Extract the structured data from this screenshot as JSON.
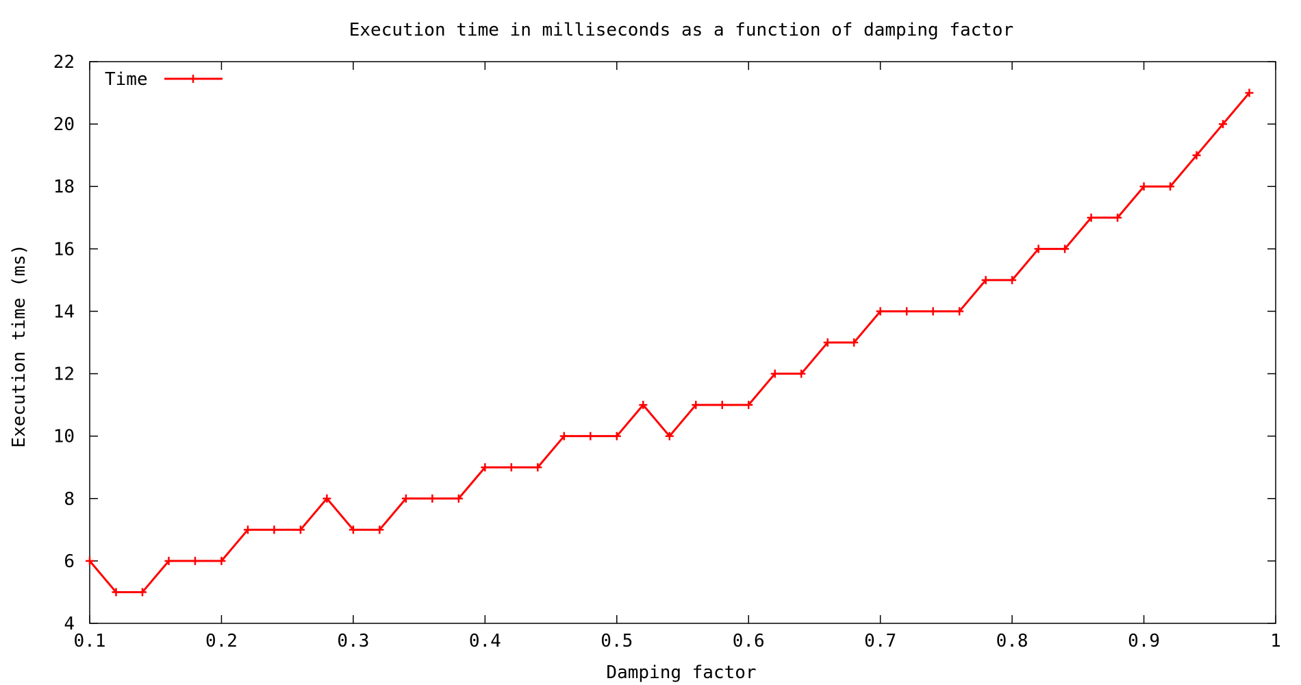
{
  "chart_data": {
    "type": "line",
    "title": "Execution time in milliseconds as a function of damping factor",
    "xlabel": "Damping factor",
    "ylabel": "Execution time (ms)",
    "xlim": [
      0.1,
      1.0
    ],
    "ylim": [
      4,
      22
    ],
    "xticks": [
      0.1,
      0.2,
      0.3,
      0.4,
      0.5,
      0.6,
      0.7,
      0.8,
      0.9,
      1.0
    ],
    "xtick_labels": [
      "0.1",
      "0.2",
      "0.3",
      "0.4",
      "0.5",
      "0.6",
      "0.7",
      "0.8",
      "0.9",
      "1"
    ],
    "yticks": [
      4,
      6,
      8,
      10,
      12,
      14,
      16,
      18,
      20,
      22
    ],
    "ytick_labels": [
      "4",
      "6",
      "8",
      "10",
      "12",
      "14",
      "16",
      "18",
      "20",
      "22"
    ],
    "grid": false,
    "legend_position": "top-left",
    "series": [
      {
        "name": "Time",
        "color": "#ff0000",
        "marker": "plus",
        "x": [
          0.1,
          0.12,
          0.14,
          0.16,
          0.18,
          0.2,
          0.22,
          0.24,
          0.26,
          0.28,
          0.3,
          0.32,
          0.34,
          0.36,
          0.38,
          0.4,
          0.42,
          0.44,
          0.46,
          0.48,
          0.5,
          0.52,
          0.54,
          0.56,
          0.58,
          0.6,
          0.62,
          0.64,
          0.66,
          0.68,
          0.7,
          0.72,
          0.74,
          0.76,
          0.78,
          0.8,
          0.82,
          0.84,
          0.86,
          0.88,
          0.9,
          0.92,
          0.94,
          0.96,
          0.98
        ],
        "y": [
          6,
          5,
          5,
          6,
          6,
          6,
          7,
          7,
          7,
          8,
          7,
          7,
          8,
          8,
          8,
          9,
          9,
          9,
          10,
          10,
          10,
          11,
          10,
          11,
          11,
          11,
          12,
          12,
          13,
          13,
          14,
          14,
          14,
          14,
          15,
          15,
          16,
          16,
          17,
          17,
          18,
          18,
          19,
          20,
          21
        ]
      }
    ]
  }
}
